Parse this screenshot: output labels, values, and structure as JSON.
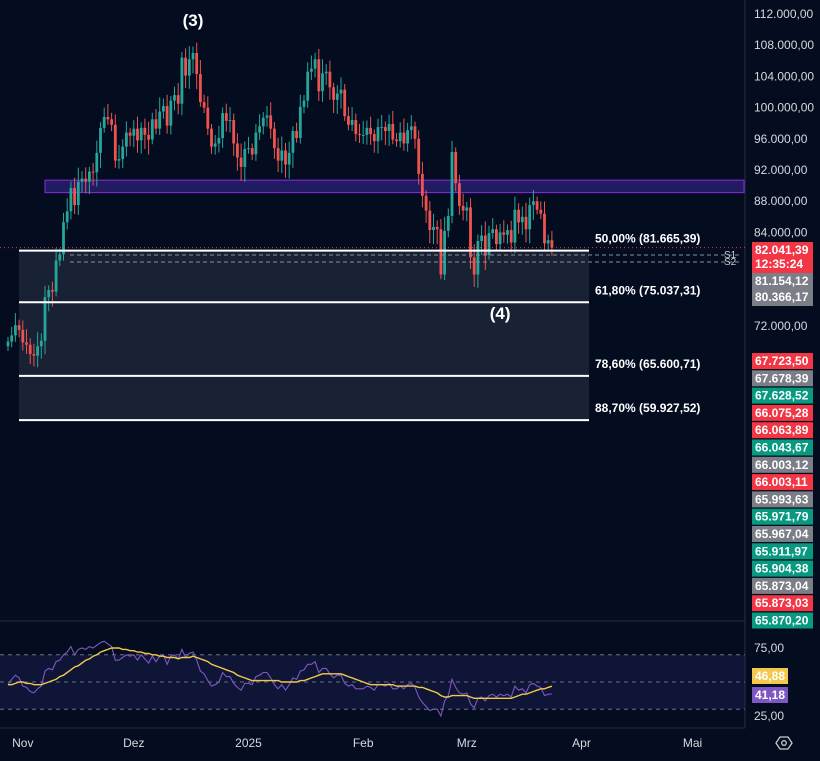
{
  "chart_data": [
    {
      "type": "candlestick",
      "x_axis_labels": [
        "Nov",
        "Dez",
        "2025",
        "Feb",
        "Mrz",
        "Apr",
        "Mai"
      ],
      "price_axis_labels": [
        "112.000,00",
        "108.000,00",
        "104.000,00",
        "100.000,00",
        "96.000,00",
        "92.000,00",
        "88.000,00",
        "84.000,00",
        "72.000,00"
      ],
      "ylim": [
        58000,
        114000
      ],
      "wave_labels": [
        {
          "text": "(3)",
          "date": "2024-12-17",
          "price": 114500
        },
        {
          "text": "(4)",
          "date": "2025-03-10",
          "price": 73800
        }
      ],
      "resistance_zone": {
        "from_date": "2024-11-10",
        "to_date": "2025-04-05",
        "low": 89100,
        "high": 90700,
        "color": "#8a2be2"
      },
      "fib_levels": [
        {
          "label": "50,00% (81.665,39)",
          "price": 81665.39
        },
        {
          "label": "61,80% (75.037,31)",
          "price": 75037.31
        },
        {
          "label": "78,60% (65.600,71)",
          "price": 65600.71
        },
        {
          "label": "88,70% (59.927,52)",
          "price": 59927.52
        }
      ],
      "pivot_markers": [
        "S1",
        "S2"
      ],
      "badges": [
        {
          "lines": [
            "82.041,39",
            "12:35:24"
          ],
          "color": "#f23645",
          "price": 82041.39
        },
        {
          "lines": [
            "81.154,12"
          ],
          "color": "#7b7e86",
          "price": 81154.12
        },
        {
          "lines": [
            "80.366,17"
          ],
          "color": "#7b7e86",
          "price": 80366.17
        }
      ],
      "stacked_badges": [
        {
          "text": "67.723,50",
          "color": "#f23645"
        },
        {
          "text": "67.678,39",
          "color": "#7b7e86"
        },
        {
          "text": "67.628,52",
          "color": "#089981"
        },
        {
          "text": "66.075,28",
          "color": "#f23645"
        },
        {
          "text": "66.063,89",
          "color": "#f23645"
        },
        {
          "text": "66.043,67",
          "color": "#089981"
        },
        {
          "text": "66.003,12",
          "color": "#7b7e86"
        },
        {
          "text": "66.003,11",
          "color": "#f23645"
        },
        {
          "text": "65.993,63",
          "color": "#7b7e86"
        },
        {
          "text": "65.971,79",
          "color": "#089981"
        },
        {
          "text": "65.967,04",
          "color": "#7b7e86"
        },
        {
          "text": "65.911,97",
          "color": "#089981"
        },
        {
          "text": "65.904,38",
          "color": "#089981"
        },
        {
          "text": "65.873,04",
          "color": "#7b7e86"
        },
        {
          "text": "65.873,03",
          "color": "#f23645"
        },
        {
          "text": "65.870,20",
          "color": "#089981"
        }
      ],
      "colors": {
        "up": "#26a69a",
        "down": "#ef5350",
        "background": "#030d1f"
      },
      "series": [
        {
          "date_start": "2024-10-28",
          "step_days": 1,
          "close": [
            70000,
            70800,
            72100,
            71500,
            69900,
            69600,
            68400,
            68200,
            69400,
            70100,
            75700,
            76600,
            76400,
            80400,
            81200,
            85300,
            86700,
            89700,
            87500,
            90500,
            90900,
            90500,
            91800,
            91700,
            94200,
            97400,
            98800,
            98500,
            97800,
            93200,
            93400,
            95000,
            96800,
            96400,
            97300,
            95800,
            97400,
            96500,
            95900,
            98500,
            97300,
            99500,
            100200,
            97700,
            100900,
            101600,
            100500,
            106400,
            104100,
            106200,
            107000,
            104300,
            100700,
            100000,
            97300,
            95000,
            95400,
            96100,
            99300,
            98300,
            98400,
            95400,
            93600,
            92400,
            94700,
            94800,
            94000,
            96800,
            97600,
            98700,
            99000,
            97300,
            94800,
            93200,
            94500,
            92700,
            94200,
            97000,
            96100,
            100100,
            100900,
            104600,
            105000,
            106200,
            102100,
            104400,
            104600,
            102600,
            101000,
            101800,
            102300,
            98900,
            97800,
            98400,
            96600,
            96500,
            96500,
            97400,
            96600,
            95700,
            97500,
            97500,
            97000,
            97900,
            95900,
            95700,
            96800,
            95400,
            97100,
            97600,
            96000,
            91500,
            88700,
            86800,
            84300,
            84700,
            84400,
            78600,
            84200,
            86100,
            94300,
            90300,
            87400,
            86800,
            87200,
            80800,
            78600,
            82900,
            83600,
            81100,
            83900,
            84400,
            82500,
            84000,
            83700,
            84300,
            82700,
            86900,
            85300,
            86000,
            84400,
            87500,
            88000,
            86900,
            86400,
            82600,
            83000,
            82041
          ]
        }
      ]
    },
    {
      "type": "line",
      "name": "RSI panel",
      "ylim": [
        20,
        80
      ],
      "y_axis_labels": [
        "75,00",
        "25,00"
      ],
      "badges": [
        {
          "text": "46,88",
          "color": "#f2c94c",
          "value": 46.88
        },
        {
          "text": "41,18",
          "color": "#7e57c2",
          "value": 41.18
        }
      ],
      "series": [
        {
          "color": "#7e57c2",
          "values": [
            48,
            52,
            55,
            53,
            47,
            46,
            43,
            42,
            45,
            47,
            58,
            60,
            59,
            65,
            66,
            70,
            72,
            76,
            70,
            74,
            75,
            74,
            76,
            75,
            77,
            79,
            80,
            78,
            76,
            66,
            66,
            68,
            70,
            69,
            70,
            66,
            70,
            67,
            64,
            69,
            65,
            69,
            70,
            63,
            69,
            70,
            67,
            74,
            68,
            71,
            72,
            66,
            58,
            56,
            51,
            47,
            48,
            50,
            57,
            54,
            54,
            49,
            46,
            44,
            49,
            49,
            48,
            54,
            55,
            57,
            57,
            53,
            48,
            45,
            48,
            44,
            48,
            53,
            52,
            58,
            59,
            63,
            63,
            65,
            57,
            60,
            60,
            56,
            53,
            55,
            55,
            49,
            47,
            48,
            45,
            45,
            45,
            47,
            46,
            44,
            48,
            48,
            47,
            49,
            45,
            45,
            47,
            45,
            48,
            49,
            46,
            39,
            35,
            32,
            29,
            30,
            30,
            25,
            36,
            40,
            52,
            46,
            42,
            41,
            42,
            34,
            31,
            38,
            39,
            36,
            40,
            41,
            39,
            41,
            40,
            41,
            39,
            47,
            44,
            45,
            42,
            48,
            49,
            47,
            46,
            40,
            41,
            41.18
          ]
        },
        {
          "color": "#f2c94c",
          "values": [
            48,
            48,
            49,
            50,
            50,
            49,
            49,
            48,
            48,
            48,
            49,
            50,
            51,
            52,
            54,
            55,
            57,
            59,
            61,
            62,
            64,
            66,
            67,
            69,
            70,
            72,
            73,
            74,
            75,
            75,
            75,
            74,
            74,
            73,
            73,
            72,
            72,
            71,
            71,
            70,
            70,
            69,
            69,
            68,
            68,
            68,
            67,
            68,
            68,
            68,
            69,
            68,
            67,
            66,
            65,
            63,
            62,
            61,
            60,
            59,
            58,
            57,
            55,
            54,
            53,
            52,
            51,
            51,
            51,
            51,
            51,
            51,
            51,
            51,
            50,
            50,
            50,
            50,
            50,
            51,
            51,
            52,
            53,
            54,
            55,
            56,
            56,
            56,
            56,
            56,
            56,
            55,
            54,
            53,
            52,
            51,
            50,
            49,
            48,
            48,
            48,
            48,
            48,
            48,
            48,
            47,
            47,
            47,
            47,
            47,
            47,
            46,
            46,
            45,
            44,
            43,
            42,
            40,
            39,
            39,
            40,
            40,
            40,
            40,
            40,
            39,
            38,
            38,
            38,
            38,
            38,
            38,
            38,
            38,
            38,
            38,
            38,
            39,
            40,
            41,
            41,
            42,
            43,
            44,
            45,
            45,
            46,
            46.88
          ]
        }
      ]
    }
  ]
}
